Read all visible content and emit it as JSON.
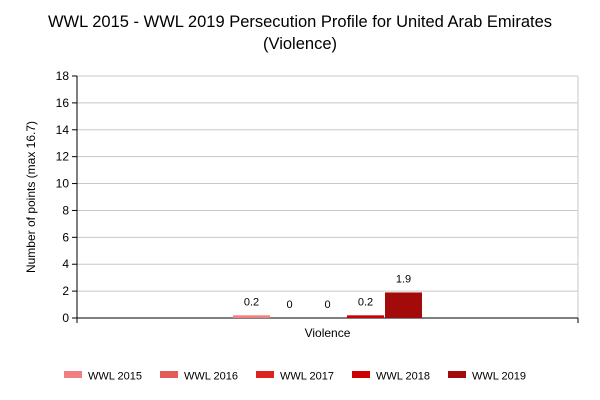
{
  "chart_data": {
    "type": "bar",
    "title": "WWL 2015 - WWL 2019 Persecution Profile for United Arab Emirates",
    "subtitle": "(Violence)",
    "xlabel": "",
    "ylabel": "Number of points (max 16.7)",
    "categories": [
      "Violence"
    ],
    "ylim": [
      0,
      18
    ],
    "y_ticks": [
      0,
      2,
      4,
      6,
      8,
      10,
      12,
      14,
      16,
      18
    ],
    "grid": true,
    "legend_position": "bottom",
    "series": [
      {
        "name": "WWL 2015",
        "color": "#f08080",
        "values": [
          0.2
        ],
        "label": "0.2"
      },
      {
        "name": "WWL 2016",
        "color": "#e35a5a",
        "values": [
          0
        ],
        "label": "0"
      },
      {
        "name": "WWL 2017",
        "color": "#dd2222",
        "values": [
          0
        ],
        "label": "0"
      },
      {
        "name": "WWL 2018",
        "color": "#cc0000",
        "values": [
          0.2
        ],
        "label": "0.2"
      },
      {
        "name": "WWL 2019",
        "color": "#a30b0b",
        "values": [
          1.9
        ],
        "label": "1.9"
      }
    ]
  }
}
